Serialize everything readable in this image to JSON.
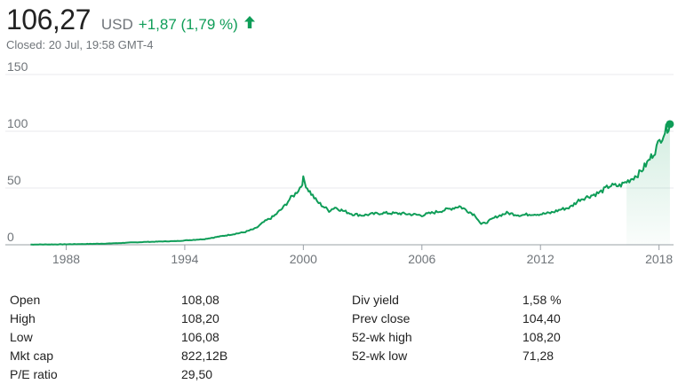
{
  "quote": {
    "price": "106,27",
    "currency": "USD",
    "change": "+1,87 (1,79 %)",
    "status": "Closed: 20 Jul, 19:58 GMT-4",
    "direction_icon": "arrow-up-icon",
    "up_color": "#0f9d58"
  },
  "chart_data": {
    "type": "line",
    "title": "",
    "xlabel": "",
    "ylabel": "",
    "xlim": [
      1986.0,
      2018.6
    ],
    "ylim": [
      0,
      150
    ],
    "y_ticks": [
      "150",
      "100",
      "50",
      "0"
    ],
    "x_ticks": [
      "1988",
      "1994",
      "2000",
      "2006",
      "2012",
      "2018"
    ],
    "grid": true,
    "line_color": "#0f9d58",
    "x": [
      1986.2,
      1988,
      1990,
      1992,
      1993.5,
      1995,
      1996,
      1997,
      1997.6,
      1998,
      1998.5,
      1999,
      1999.3,
      1999.6,
      1999.9,
      2000.0,
      2000.2,
      2000.4,
      2000.7,
      2001,
      2001.3,
      2001.6,
      2002,
      2002.5,
      2003,
      2003.5,
      2004,
      2005,
      2006,
      2006.5,
      2007,
      2007.5,
      2007.9,
      2008.3,
      2008.7,
      2009.0,
      2009.3,
      2009.8,
      2010.3,
      2011,
      2011.5,
      2012,
      2012.5,
      2013,
      2013.5,
      2014,
      2014.5,
      2015,
      2015.5,
      2016,
      2016.5,
      2017,
      2017.4,
      2017.8,
      2018.1,
      2018.3,
      2018.55
    ],
    "values": [
      0.2,
      0.4,
      1.0,
      2.5,
      3.2,
      5.0,
      8.0,
      11.0,
      14.5,
      20.0,
      25.0,
      33.0,
      40.0,
      45.0,
      52.0,
      58.0,
      50.0,
      45.0,
      38.0,
      34.0,
      30.0,
      33.0,
      30.0,
      27.0,
      26.0,
      27.0,
      28.0,
      27.5,
      26.0,
      28.0,
      30.0,
      32.0,
      34.0,
      30.0,
      26.0,
      18.0,
      20.0,
      25.0,
      28.0,
      26.0,
      27.0,
      27.0,
      28.0,
      31.0,
      33.0,
      40.0,
      43.0,
      46.0,
      52.0,
      52.0,
      57.0,
      63.0,
      72.0,
      83.0,
      94.0,
      100.0,
      106.27
    ]
  },
  "stats": {
    "rows": [
      {
        "l1": "Open",
        "v1": "108,08",
        "l2": "Div yield",
        "v2": "1,58 %"
      },
      {
        "l1": "High",
        "v1": "108,20",
        "l2": "Prev close",
        "v2": "104,40"
      },
      {
        "l1": "Low",
        "v1": "106,08",
        "l2": "52-wk high",
        "v2": "108,20"
      },
      {
        "l1": "Mkt cap",
        "v1": "822,12B",
        "l2": "52-wk low",
        "v2": "71,28"
      },
      {
        "l1": "P/E ratio",
        "v1": "29,50",
        "l2": "",
        "v2": ""
      }
    ]
  }
}
